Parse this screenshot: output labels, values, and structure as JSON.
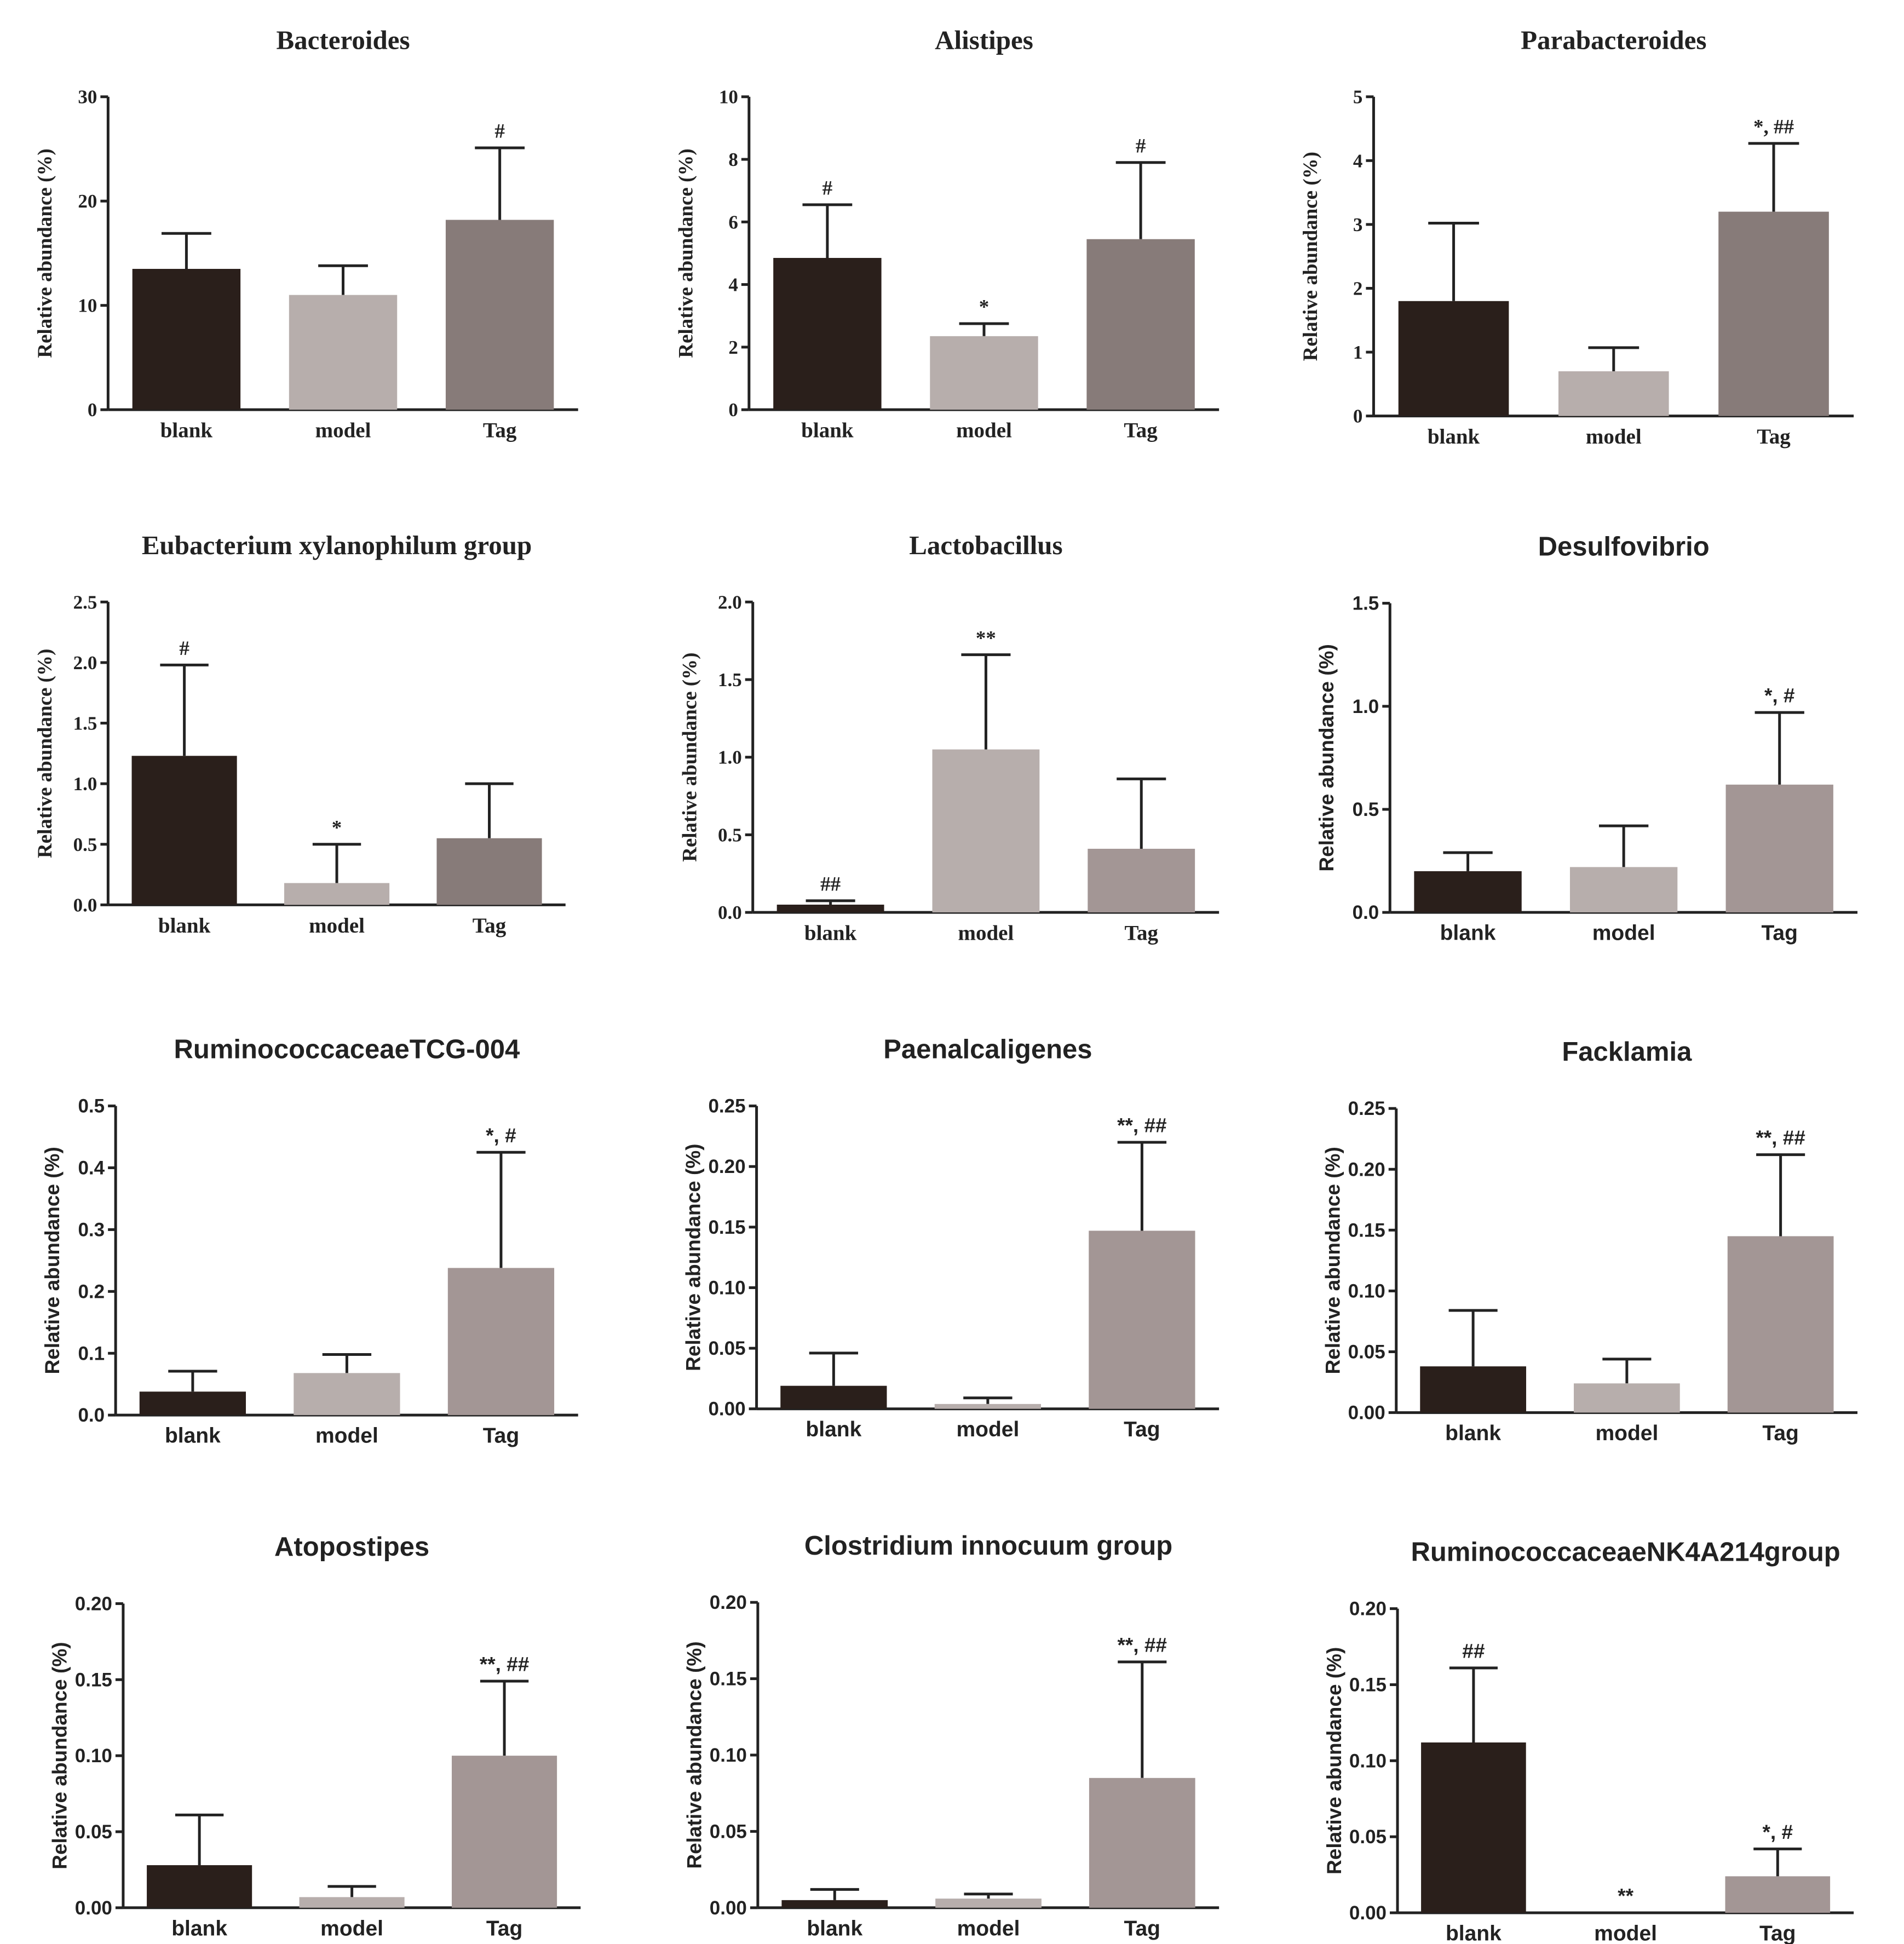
{
  "figure": {
    "y_axis_label": "Relative abundance (%)",
    "colors": {
      "blank": "#2a1f1b",
      "model": "#b7aeac",
      "tag_dark": "#877b79",
      "tag_light": "#a39695"
    }
  },
  "chart_data": [
    {
      "type": "bar",
      "title": "Bacteroides",
      "font": "serif",
      "tag_color": "tag_dark",
      "ylabel": "Relative abundance (%)",
      "ylim": [
        0,
        30
      ],
      "yticks": [
        "0",
        "10",
        "20",
        "30"
      ],
      "categories": [
        "blank",
        "model",
        "Tag"
      ],
      "values": [
        13.5,
        11,
        18.2
      ],
      "errors": [
        3.4,
        2.8,
        6.9
      ],
      "annotations": [
        "",
        "",
        "#"
      ]
    },
    {
      "type": "bar",
      "title": "Alistipes",
      "font": "serif",
      "tag_color": "tag_dark",
      "ylabel": "Relative abundance (%)",
      "ylim": [
        0,
        10
      ],
      "yticks": [
        "0",
        "2",
        "4",
        "6",
        "8",
        "10"
      ],
      "categories": [
        "blank",
        "model",
        "Tag"
      ],
      "values": [
        4.85,
        2.35,
        5.45
      ],
      "errors": [
        1.7,
        0.4,
        2.45
      ],
      "annotations": [
        "#",
        "*",
        "#"
      ]
    },
    {
      "type": "bar",
      "title": "Parabacteroides",
      "font": "serif",
      "tag_color": "tag_dark",
      "ylabel": "Relative abundance (%)",
      "ylim": [
        0,
        5
      ],
      "yticks": [
        "0",
        "1",
        "2",
        "3",
        "4",
        "5"
      ],
      "categories": [
        "blank",
        "model",
        "Tag"
      ],
      "values": [
        1.8,
        0.7,
        3.2
      ],
      "errors": [
        1.22,
        0.37,
        1.07
      ],
      "annotations": [
        "",
        "",
        "*, ##"
      ]
    },
    {
      "type": "bar",
      "title": "Eubacterium xylanophilum group",
      "font": "serif",
      "tag_color": "tag_dark",
      "ylabel": "Relative abundance (%)",
      "ylim": [
        0,
        2.5
      ],
      "yticks": [
        "0.0",
        "0.5",
        "1.0",
        "1.5",
        "2.0",
        "2.5"
      ],
      "categories": [
        "blank",
        "model",
        "Tag"
      ],
      "values": [
        1.23,
        0.18,
        0.55
      ],
      "errors": [
        0.75,
        0.32,
        0.45
      ],
      "annotations": [
        "#",
        "*",
        ""
      ]
    },
    {
      "type": "bar",
      "title": "Lactobacillus",
      "font": "serif",
      "tag_color": "tag_light",
      "ylabel": "Relative abundance (%)",
      "ylim": [
        0,
        2.0
      ],
      "yticks": [
        "0.0",
        "0.5",
        "1.0",
        "1.5",
        "2.0"
      ],
      "categories": [
        "blank",
        "model",
        "Tag"
      ],
      "values": [
        0.05,
        1.05,
        0.41
      ],
      "errors": [
        0.025,
        0.61,
        0.45
      ],
      "annotations": [
        "##",
        "**",
        ""
      ]
    },
    {
      "type": "bar",
      "title": "Desulfovibrio",
      "font": "sans",
      "tag_color": "tag_light",
      "ylabel": "Relative abundance (%)",
      "ylim": [
        0,
        1.5
      ],
      "yticks": [
        "0.0",
        "0.5",
        "1.0",
        "1.5"
      ],
      "categories": [
        "blank",
        "model",
        "Tag"
      ],
      "values": [
        0.2,
        0.22,
        0.62
      ],
      "errors": [
        0.09,
        0.2,
        0.35
      ],
      "annotations": [
        "",
        "",
        "*, #"
      ]
    },
    {
      "type": "bar",
      "title": "RuminococcaceaeTCG-004",
      "font": "sans",
      "tag_color": "tag_light",
      "ylabel": "Relative abundance (%)",
      "ylim": [
        0,
        0.5
      ],
      "yticks": [
        "0.0",
        "0.1",
        "0.2",
        "0.3",
        "0.4",
        "0.5"
      ],
      "categories": [
        "blank",
        "model",
        "Tag"
      ],
      "values": [
        0.038,
        0.068,
        0.238
      ],
      "errors": [
        0.033,
        0.03,
        0.187
      ],
      "annotations": [
        "",
        "",
        "*, #"
      ]
    },
    {
      "type": "bar",
      "title": "Paenalcaligenes",
      "font": "sans",
      "tag_color": "tag_light",
      "ylabel": "Relative abundance (%)",
      "ylim": [
        0,
        0.25
      ],
      "yticks": [
        "0.00",
        "0.05",
        "0.10",
        "0.15",
        "0.20",
        "0.25"
      ],
      "categories": [
        "blank",
        "model",
        "Tag"
      ],
      "values": [
        0.019,
        0.004,
        0.147
      ],
      "errors": [
        0.027,
        0.005,
        0.073
      ],
      "annotations": [
        "",
        "",
        "**, ##"
      ]
    },
    {
      "type": "bar",
      "title": "Facklamia",
      "font": "sans",
      "tag_color": "tag_light",
      "ylabel": "Relative abundance (%)",
      "ylim": [
        0,
        0.25
      ],
      "yticks": [
        "0.00",
        "0.05",
        "0.10",
        "0.15",
        "0.20",
        "0.25"
      ],
      "categories": [
        "blank",
        "model",
        "Tag"
      ],
      "values": [
        0.038,
        0.024,
        0.145
      ],
      "errors": [
        0.046,
        0.02,
        0.067
      ],
      "annotations": [
        "",
        "",
        "**, ##"
      ]
    },
    {
      "type": "bar",
      "title": "Atopostipes",
      "font": "sans",
      "tag_color": "tag_light",
      "ylabel": "Relative abundance (%)",
      "ylim": [
        0,
        0.2
      ],
      "yticks": [
        "0.00",
        "0.05",
        "0.10",
        "0.15",
        "0.20"
      ],
      "categories": [
        "blank",
        "model",
        "Tag"
      ],
      "values": [
        0.028,
        0.007,
        0.1
      ],
      "errors": [
        0.033,
        0.007,
        0.049
      ],
      "annotations": [
        "",
        "",
        "**, ##"
      ]
    },
    {
      "type": "bar",
      "title": "Clostridium innocuum group",
      "font": "sans",
      "tag_color": "tag_light",
      "ylabel": "Relative abundance (%)",
      "ylim": [
        0,
        0.2
      ],
      "yticks": [
        "0.00",
        "0.05",
        "0.10",
        "0.15",
        "0.20"
      ],
      "categories": [
        "blank",
        "model",
        "Tag"
      ],
      "values": [
        0.005,
        0.006,
        0.085
      ],
      "errors": [
        0.007,
        0.003,
        0.076
      ],
      "annotations": [
        "",
        "",
        "**, ##"
      ]
    },
    {
      "type": "bar",
      "title": "RuminococcaceaeNK4A214group",
      "font": "sans",
      "tag_color": "tag_light",
      "ylabel": "Relative abundance (%)",
      "ylim": [
        0,
        0.2
      ],
      "yticks": [
        "0.00",
        "0.05",
        "0.10",
        "0.15",
        "0.20"
      ],
      "categories": [
        "blank",
        "model",
        "Tag"
      ],
      "values": [
        0.112,
        0.0,
        0.024
      ],
      "errors": [
        0.049,
        0.0,
        0.018
      ],
      "annotations": [
        "##",
        "**",
        "*, #"
      ]
    }
  ]
}
